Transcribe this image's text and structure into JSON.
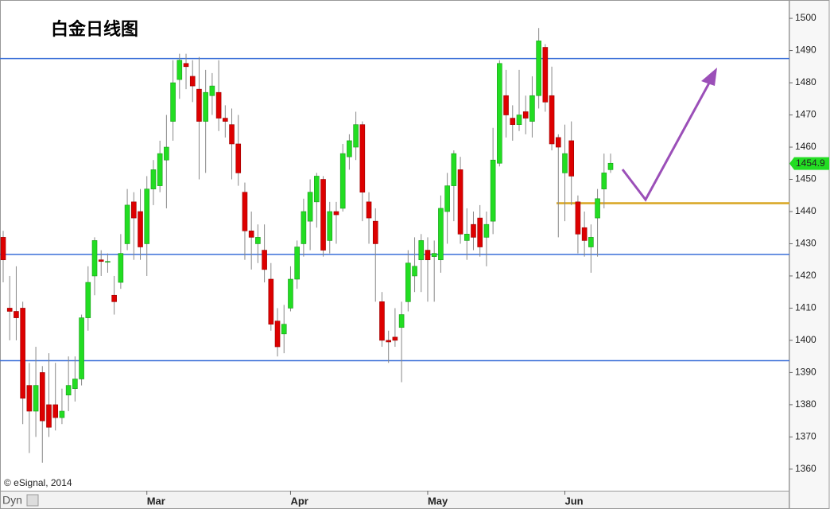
{
  "chart_data": {
    "type": "candlestick",
    "title": "白金日线图",
    "credit": "© eSignal, 2014",
    "mode_label": "Dyn",
    "ylim": [
      1353.3,
      1505.7
    ],
    "yticks": [
      1360,
      1370,
      1380,
      1390,
      1400,
      1410,
      1420,
      1430,
      1440,
      1450,
      1460,
      1470,
      1480,
      1490,
      1500
    ],
    "up_color": "#22dd22",
    "down_color": "#dd0000",
    "categories": [
      null,
      null,
      null,
      null,
      null,
      null,
      null,
      null,
      null,
      null,
      null,
      null,
      null,
      null,
      null,
      null,
      null,
      null,
      null,
      null,
      null,
      null,
      "Mar",
      null,
      null,
      null,
      null,
      null,
      null,
      null,
      null,
      null,
      null,
      null,
      null,
      null,
      null,
      null,
      null,
      null,
      null,
      null,
      null,
      null,
      "Apr",
      null,
      null,
      null,
      null,
      null,
      null,
      null,
      null,
      null,
      null,
      null,
      null,
      null,
      null,
      null,
      null,
      null,
      null,
      null,
      null,
      "May",
      null,
      null,
      null,
      null,
      null,
      null,
      null,
      null,
      null,
      null,
      null,
      null,
      null,
      null,
      null,
      null,
      null,
      null,
      null,
      null,
      "Jun",
      null,
      null,
      null,
      null,
      null,
      null,
      null
    ],
    "ohlc": [
      [
        1432,
        1434,
        1418,
        1425
      ],
      [
        1410,
        1420,
        1400,
        1409
      ],
      [
        1409,
        1423,
        1400,
        1407
      ],
      [
        1410,
        1412,
        1374,
        1382
      ],
      [
        1386,
        1393,
        1365,
        1378
      ],
      [
        1378,
        1398,
        1370,
        1386
      ],
      [
        1390,
        1392,
        1362,
        1375
      ],
      [
        1380,
        1396,
        1370,
        1373
      ],
      [
        1380,
        1393,
        1372,
        1376
      ],
      [
        1376,
        1385,
        1374,
        1378
      ],
      [
        1383,
        1395,
        1378,
        1386
      ],
      [
        1385,
        1395,
        1381,
        1388
      ],
      [
        1388,
        1408,
        1386,
        1407
      ],
      [
        1407,
        1423,
        1403,
        1418
      ],
      [
        1420,
        1432,
        1414,
        1431
      ],
      [
        1425,
        1428,
        1420,
        1424.5
      ],
      [
        1424.5,
        1427,
        1421,
        1424.5
      ],
      [
        1414,
        1420,
        1408,
        1412
      ],
      [
        1418,
        1433,
        1416,
        1427
      ],
      [
        1430,
        1447,
        1428,
        1442
      ],
      [
        1443,
        1446,
        1425,
        1438
      ],
      [
        1440,
        1447,
        1425,
        1429
      ],
      [
        1430,
        1451,
        1420,
        1447
      ],
      [
        1447,
        1456,
        1442,
        1453
      ],
      [
        1448,
        1462,
        1446,
        1458
      ],
      [
        1456,
        1470,
        1441,
        1460
      ],
      [
        1468,
        1487,
        1462,
        1480
      ],
      [
        1481,
        1489,
        1475,
        1487
      ],
      [
        1486,
        1489,
        1478,
        1485
      ],
      [
        1482,
        1487,
        1474,
        1479
      ],
      [
        1478,
        1488,
        1450,
        1468
      ],
      [
        1468,
        1484,
        1452,
        1477
      ],
      [
        1476,
        1483,
        1470,
        1479
      ],
      [
        1477,
        1487,
        1465,
        1469
      ],
      [
        1469,
        1473,
        1463,
        1468
      ],
      [
        1467,
        1472,
        1450,
        1461
      ],
      [
        1461,
        1470,
        1448,
        1452
      ],
      [
        1446,
        1449,
        1425,
        1434
      ],
      [
        1434,
        1440,
        1422,
        1432
      ],
      [
        1430,
        1436,
        1424,
        1432
      ],
      [
        1428,
        1436,
        1418,
        1422
      ],
      [
        1419,
        1424,
        1403,
        1405
      ],
      [
        1406,
        1410,
        1395,
        1398
      ],
      [
        1402,
        1411,
        1396,
        1405
      ],
      [
        1410,
        1423,
        1409,
        1419
      ],
      [
        1419,
        1431,
        1416,
        1429
      ],
      [
        1430,
        1444,
        1426,
        1440
      ],
      [
        1437,
        1450,
        1428,
        1446
      ],
      [
        1443,
        1452,
        1435,
        1451
      ],
      [
        1450,
        1451,
        1426,
        1428
      ],
      [
        1431,
        1443,
        1427,
        1440
      ],
      [
        1440,
        1443,
        1430,
        1439
      ],
      [
        1441,
        1461,
        1440,
        1458
      ],
      [
        1457,
        1464,
        1453,
        1462
      ],
      [
        1460,
        1471,
        1456,
        1467
      ],
      [
        1467,
        1468,
        1437,
        1446
      ],
      [
        1443,
        1446,
        1430,
        1438
      ],
      [
        1437,
        1441,
        1412,
        1430
      ],
      [
        1412,
        1415,
        1398,
        1400
      ],
      [
        1400,
        1403,
        1393,
        1399.5
      ],
      [
        1401,
        1410,
        1398,
        1400
      ],
      [
        1404,
        1412,
        1387,
        1408
      ],
      [
        1412,
        1428,
        1409,
        1424
      ],
      [
        1420,
        1432,
        1415,
        1423
      ],
      [
        1425,
        1433,
        1415,
        1431
      ],
      [
        1428,
        1432,
        1412,
        1425
      ],
      [
        1426,
        1431,
        1412,
        1427
      ],
      [
        1425,
        1445,
        1421,
        1441
      ],
      [
        1440,
        1452,
        1430,
        1448
      ],
      [
        1448,
        1459,
        1437,
        1458
      ],
      [
        1453,
        1457,
        1430,
        1433
      ],
      [
        1431,
        1441,
        1425,
        1433
      ],
      [
        1436,
        1440,
        1428,
        1432
      ],
      [
        1438,
        1442,
        1426,
        1429
      ],
      [
        1432,
        1440,
        1423,
        1436
      ],
      [
        1437,
        1466,
        1433,
        1456
      ],
      [
        1455,
        1487,
        1454,
        1486
      ],
      [
        1476,
        1484,
        1463,
        1470
      ],
      [
        1469,
        1473,
        1462,
        1467
      ],
      [
        1467,
        1484,
        1465,
        1470
      ],
      [
        1471,
        1476,
        1464,
        1469
      ],
      [
        1468,
        1482,
        1463,
        1476
      ],
      [
        1476,
        1497,
        1472,
        1493
      ],
      [
        1491,
        1492,
        1471,
        1474
      ],
      [
        1476,
        1485,
        1459,
        1461
      ],
      [
        1463,
        1464,
        1432,
        1460
      ],
      [
        1452,
        1467,
        1437,
        1458
      ],
      [
        1462,
        1468,
        1442,
        1451
      ],
      [
        1443,
        1445,
        1427,
        1433
      ],
      [
        1435,
        1440,
        1426,
        1431
      ],
      [
        1429,
        1436,
        1421,
        1432
      ],
      [
        1438,
        1447,
        1426,
        1444
      ],
      [
        1447,
        1458,
        1441,
        1452
      ],
      [
        1453,
        1458,
        1452,
        1455
      ]
    ],
    "levels": [
      {
        "value": 1487.5,
        "color": "#3a6fd8"
      },
      {
        "value": 1426.7,
        "color": "#3a6fd8"
      },
      {
        "value": 1393.7,
        "color": "#3a6fd8"
      },
      {
        "value": 1442.6,
        "color": "#d9a521"
      }
    ],
    "last_price": 1454.9
  }
}
